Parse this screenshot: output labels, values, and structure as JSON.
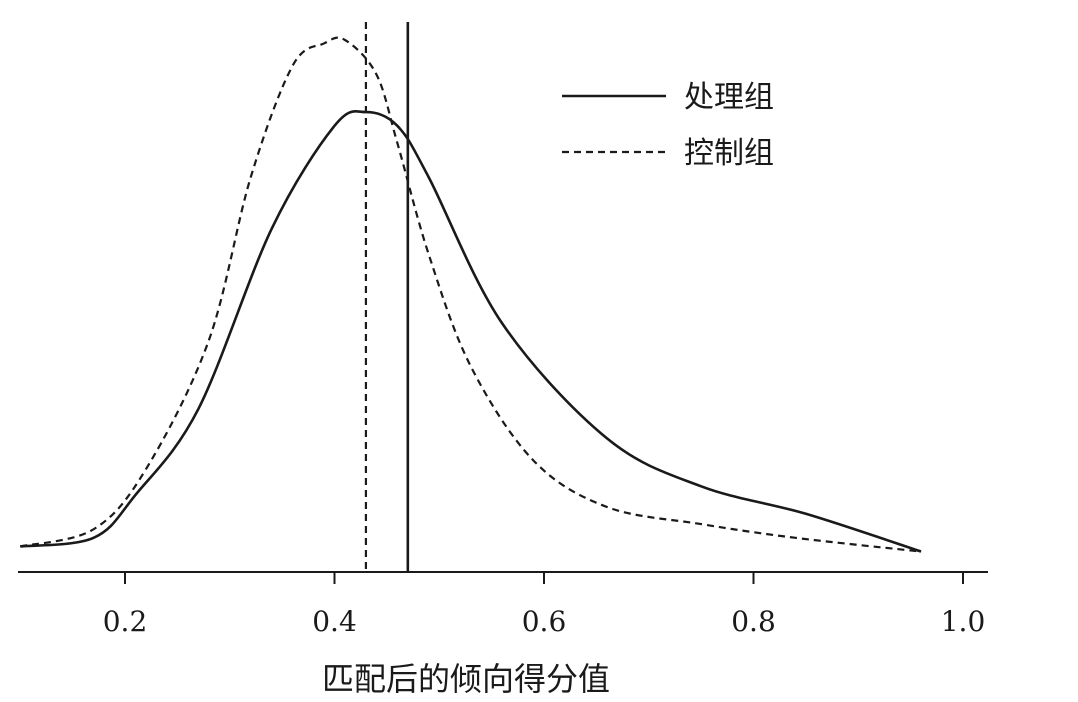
{
  "chart_data": {
    "type": "line",
    "title": "",
    "xlabel": "匹配后的倾向得分值",
    "ylabel": "",
    "xlim": [
      0.1,
      1.0
    ],
    "ylim": [
      0,
      3.0
    ],
    "xticks": [
      0.2,
      0.4,
      0.6,
      0.8,
      1.0
    ],
    "xtick_labels": [
      "0.2",
      "0.4",
      "0.6",
      "0.8",
      "1.0"
    ],
    "grid": false,
    "legend": "top-right",
    "series": [
      {
        "name": "处理组",
        "style": "solid",
        "x": [
          0.1,
          0.17,
          0.21,
          0.27,
          0.34,
          0.4,
          0.43,
          0.46,
          0.49,
          0.56,
          0.66,
          0.75,
          0.85,
          0.96
        ],
        "y": [
          0.05,
          0.1,
          0.35,
          0.85,
          1.9,
          2.5,
          2.58,
          2.5,
          2.2,
          1.35,
          0.68,
          0.4,
          0.24,
          0.02
        ],
        "vline_x": 0.47
      },
      {
        "name": "控制组",
        "style": "dashed",
        "x": [
          0.1,
          0.17,
          0.22,
          0.28,
          0.32,
          0.36,
          0.39,
          0.41,
          0.44,
          0.46,
          0.49,
          0.53,
          0.59,
          0.66,
          0.75,
          0.84,
          0.96
        ],
        "y": [
          0.05,
          0.15,
          0.5,
          1.25,
          2.2,
          2.85,
          2.98,
          3.0,
          2.8,
          2.4,
          1.75,
          1.1,
          0.55,
          0.28,
          0.18,
          0.1,
          0.02
        ],
        "vline_x": 0.43
      }
    ]
  },
  "colors": {
    "line": "#1a1a1a",
    "background": "#ffffff"
  }
}
